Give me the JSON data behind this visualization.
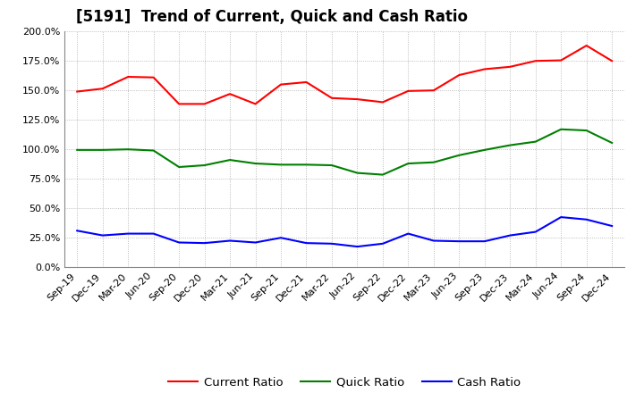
{
  "title": "[5191]  Trend of Current, Quick and Cash Ratio",
  "labels": [
    "Sep-19",
    "Dec-19",
    "Mar-20",
    "Jun-20",
    "Sep-20",
    "Dec-20",
    "Mar-21",
    "Jun-21",
    "Sep-21",
    "Dec-21",
    "Mar-22",
    "Jun-22",
    "Sep-22",
    "Dec-22",
    "Mar-23",
    "Jun-23",
    "Sep-23",
    "Dec-23",
    "Mar-24",
    "Jun-24",
    "Sep-24",
    "Dec-24"
  ],
  "current_ratio": [
    149.0,
    151.5,
    161.5,
    161.0,
    138.5,
    138.5,
    147.0,
    138.5,
    155.0,
    157.0,
    143.5,
    142.5,
    140.0,
    149.5,
    150.0,
    163.0,
    168.0,
    170.0,
    175.0,
    175.5,
    188.0,
    175.0
  ],
  "quick_ratio": [
    99.5,
    99.5,
    100.0,
    99.0,
    85.0,
    86.5,
    91.0,
    88.0,
    87.0,
    87.0,
    86.5,
    80.0,
    78.5,
    88.0,
    89.0,
    95.0,
    99.5,
    103.5,
    106.5,
    117.0,
    116.0,
    105.5
  ],
  "cash_ratio": [
    31.0,
    27.0,
    28.5,
    28.5,
    21.0,
    20.5,
    22.5,
    21.0,
    25.0,
    20.5,
    20.0,
    17.5,
    20.0,
    28.5,
    22.5,
    22.0,
    22.0,
    27.0,
    30.0,
    42.5,
    40.5,
    35.0
  ],
  "current_color": "#ff0000",
  "quick_color": "#008000",
  "cash_color": "#0000ff",
  "ylim": [
    0,
    200
  ],
  "yticks": [
    0,
    25,
    50,
    75,
    100,
    125,
    150,
    175,
    200
  ],
  "ytick_labels": [
    "0.0%",
    "25.0%",
    "50.0%",
    "75.0%",
    "100.0%",
    "125.0%",
    "150.0%",
    "175.0%",
    "200.0%"
  ],
  "grid_color": "#aaaaaa",
  "bg_color": "#ffffff",
  "legend_labels": [
    "Current Ratio",
    "Quick Ratio",
    "Cash Ratio"
  ],
  "title_fontsize": 12,
  "tick_fontsize": 8,
  "legend_fontsize": 9.5
}
